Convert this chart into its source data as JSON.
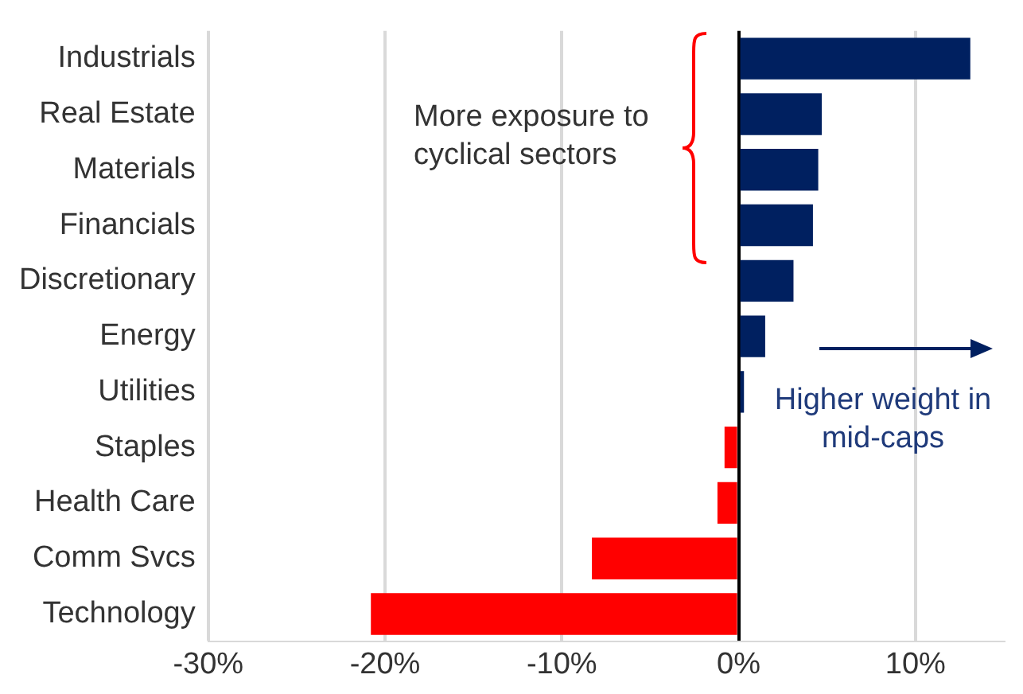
{
  "chart_data": {
    "type": "bar",
    "orientation": "horizontal",
    "categories": [
      "Industrials",
      "Real Estate",
      "Materials",
      "Financials",
      "Discretionary",
      "Energy",
      "Utilities",
      "Staples",
      "Health Care",
      "Comm Svcs",
      "Technology"
    ],
    "values": [
      13.1,
      4.7,
      4.5,
      4.2,
      3.1,
      1.5,
      0.3,
      -0.8,
      -1.2,
      -8.3,
      -20.8
    ],
    "colors": [
      "#002060",
      "#002060",
      "#002060",
      "#002060",
      "#002060",
      "#002060",
      "#002060",
      "#ff0000",
      "#ff0000",
      "#ff0000",
      "#ff0000"
    ],
    "xlim": [
      -30,
      15
    ],
    "xticks": [
      {
        "value": -30,
        "label": "-30%"
      },
      {
        "value": -20,
        "label": "-20%"
      },
      {
        "value": -10,
        "label": "-10%"
      },
      {
        "value": 0,
        "label": "0%"
      },
      {
        "value": 10,
        "label": "10%"
      }
    ],
    "grid": "x",
    "annotations": [
      "More exposure to cyclical sectors",
      "Higher weight in mid-caps"
    ]
  }
}
